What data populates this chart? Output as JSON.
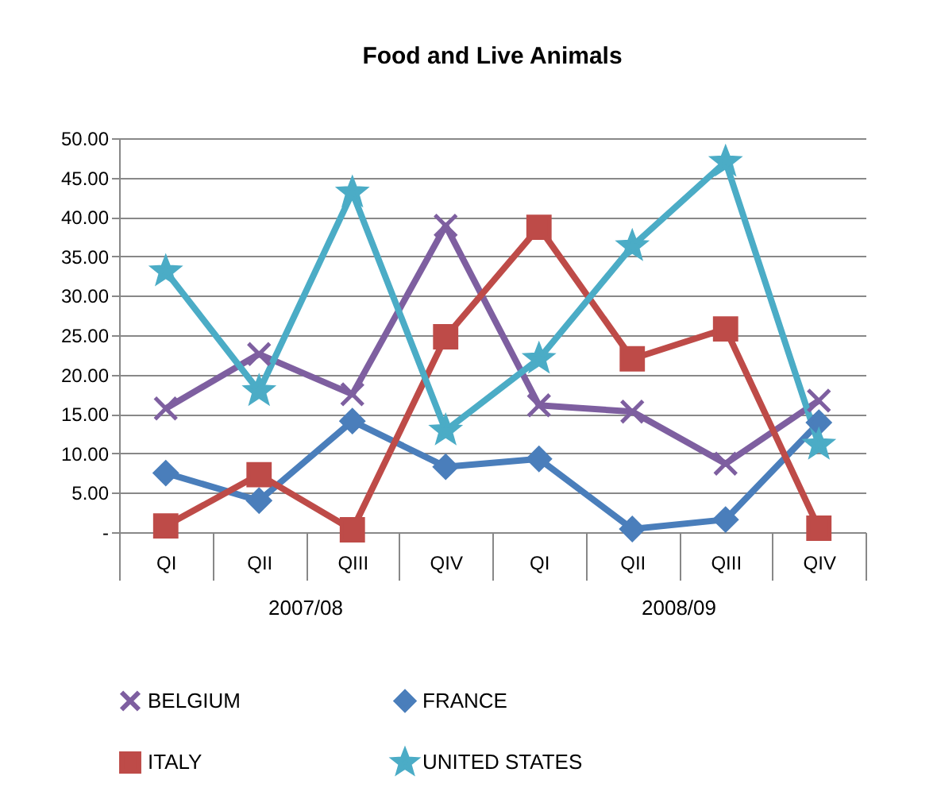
{
  "chart_data": {
    "type": "line",
    "title": "Food and Live Animals",
    "categories": [
      "QI",
      "QII",
      "QIII",
      "QIV",
      "QI",
      "QII",
      "QIII",
      "QIV"
    ],
    "annotations": [
      "2007/08",
      "2008/09"
    ],
    "series": [
      {
        "name": "BELGIUM",
        "color": "#7e5fa0",
        "marker": "cross",
        "values": [
          15.7,
          22.6,
          17.5,
          38.9,
          16.1,
          15.3,
          8.7,
          16.7
        ]
      },
      {
        "name": "FRANCE",
        "color": "#4a7ebb",
        "marker": "diamond",
        "values": [
          7.5,
          4.0,
          14.1,
          8.3,
          9.3,
          0.4,
          1.6,
          13.9
        ]
      },
      {
        "name": "ITALY",
        "color": "#be4b48",
        "marker": "square",
        "values": [
          0.8,
          7.3,
          0.3,
          24.8,
          38.7,
          22.0,
          25.8,
          0.5
        ]
      },
      {
        "name": "UNITED STATES",
        "color": "#4bacc6",
        "marker": "star",
        "values": [
          33.1,
          17.9,
          43.1,
          12.9,
          22.0,
          36.3,
          47.0,
          11.1
        ]
      }
    ],
    "ylim": [
      0,
      50
    ],
    "yticks": [
      {
        "value": 0,
        "label": "-"
      },
      {
        "value": 5,
        "label": "5.00"
      },
      {
        "value": 10,
        "label": "10.00"
      },
      {
        "value": 15,
        "label": "15.00"
      },
      {
        "value": 20,
        "label": "20.00"
      },
      {
        "value": 25,
        "label": "25.00"
      },
      {
        "value": 30,
        "label": "30.00"
      },
      {
        "value": 35,
        "label": "35.00"
      },
      {
        "value": 40,
        "label": "40.00"
      },
      {
        "value": 45,
        "label": "45.00"
      },
      {
        "value": 50,
        "label": "50.00"
      }
    ],
    "grid": "y",
    "legend": "bottom"
  }
}
